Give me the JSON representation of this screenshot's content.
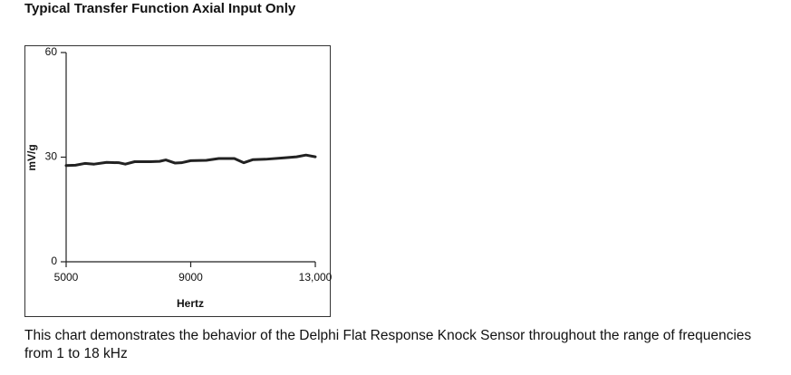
{
  "chart_data": {
    "type": "line",
    "title": "Typical Transfer Function Axial Input Only",
    "x_label": "Hertz",
    "y_label": "mV/g",
    "x": [
      5000,
      5300,
      5600,
      5900,
      6300,
      6700,
      6900,
      7200,
      7700,
      8000,
      8200,
      8500,
      8700,
      9000,
      9500,
      9900,
      10400,
      10700,
      11000,
      11400,
      12000,
      12400,
      12700,
      13000
    ],
    "values": [
      27.6,
      27.7,
      28.2,
      28.0,
      28.5,
      28.4,
      28.0,
      28.7,
      28.7,
      28.8,
      29.2,
      28.3,
      28.4,
      29.0,
      29.1,
      29.6,
      29.6,
      28.4,
      29.3,
      29.4,
      29.8,
      30.1,
      30.6,
      30.1
    ],
    "color": "#222222",
    "xlim": [
      5000,
      13000
    ],
    "xticks": [
      5000,
      9000,
      {
        "value": 13000,
        "label": "13,000"
      }
    ],
    "ylim": [
      0,
      60
    ],
    "yticks": [
      0,
      30,
      60
    ]
  },
  "caption": "This chart demonstrates the behavior of the Delphi Flat Response Knock Sensor throughout the range of frequencies from 1 to 18 kHz"
}
